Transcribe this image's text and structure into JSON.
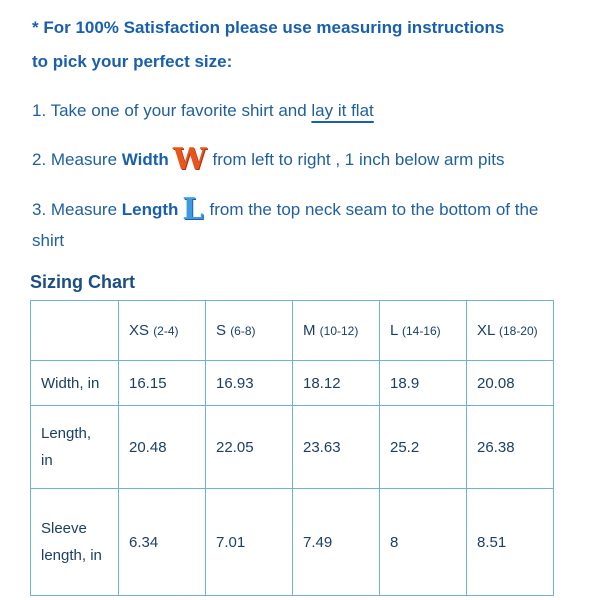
{
  "intro": {
    "line1": "* For 100% Satisfaction please use measuring instructions",
    "line2": "to pick your perfect size:"
  },
  "steps": [
    {
      "text": "1. Take one of your favorite shirt and ",
      "link": "lay it flat"
    },
    {
      "text": "2. Measure ",
      "bold": "Width",
      "icon": "W",
      "rest": "from left to right , 1 inch below arm pits"
    },
    {
      "text": "3. Measure ",
      "bold": "Length",
      "icon": "L",
      "rest": "from the top neck seam to the bottom of the shirt"
    }
  ],
  "table": {
    "title": "Sizing Chart",
    "header": [
      {
        "size": "XS",
        "range": "(2-4)"
      },
      {
        "size": "S",
        "range": "(6-8)"
      },
      {
        "size": "M",
        "range": "(10-12)"
      },
      {
        "size": "L",
        "range": "(14-16)"
      },
      {
        "size": "XL",
        "range": "(18-20)"
      }
    ],
    "rows": [
      {
        "label": "Width, in",
        "values": [
          16.15,
          16.93,
          18.12,
          18.9,
          20.08
        ]
      },
      {
        "label": "Length, in",
        "values": [
          20.48,
          22.05,
          23.63,
          25.2,
          26.38
        ]
      },
      {
        "label": "Sleeve length, in",
        "values": [
          6.34,
          7.01,
          7.49,
          8,
          8.51
        ]
      }
    ]
  }
}
